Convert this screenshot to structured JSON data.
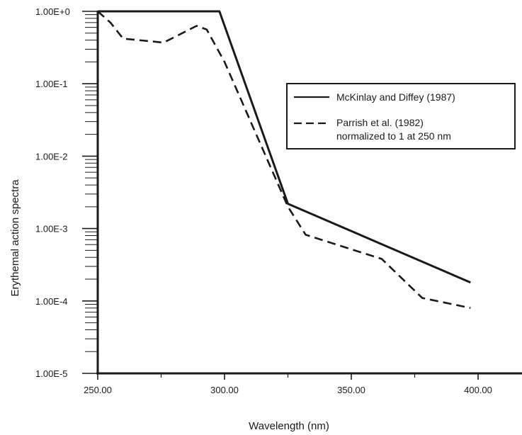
{
  "chart_data": {
    "type": "line",
    "xlabel": "Wavelength (nm)",
    "ylabel": "Erythemal  action  spectra",
    "x_ticks": [
      "250.00",
      "300.00",
      "350.00",
      "400.00"
    ],
    "x_tick_values": [
      250,
      300,
      350,
      400
    ],
    "y_ticks": [
      "1.00E+0",
      "1.00E-1",
      "1.00E-2",
      "1.00E-3",
      "1.00E-4",
      "1.00E-5"
    ],
    "y_tick_values": [
      1,
      0.1,
      0.01,
      0.001,
      0.0001,
      1e-05
    ],
    "xlim": [
      250,
      418
    ],
    "ylim": [
      1e-05,
      1
    ],
    "y_scale": "log",
    "grid": false,
    "legend_position": "top-right",
    "series": [
      {
        "name": "McKinlay and Diffey (1987)",
        "line_style": "solid",
        "x": [
          250,
          298,
          325,
          397
        ],
        "y": [
          1.0,
          1.0,
          0.0022,
          0.00018
        ]
      },
      {
        "name": "Parrish et al. (1982)",
        "name_line2": "normalized to 1 at 250 nm",
        "line_style": "dashed",
        "x": [
          250,
          255,
          260,
          276,
          289,
          293,
          300,
          325,
          332,
          362,
          378,
          397
        ],
        "y": [
          1.0,
          0.7,
          0.42,
          0.37,
          0.63,
          0.56,
          0.2,
          0.002,
          0.00082,
          0.00038,
          0.00011,
          8e-05
        ]
      }
    ]
  },
  "colors": {
    "line": "#1a1a1a",
    "background": "#ffffff"
  }
}
